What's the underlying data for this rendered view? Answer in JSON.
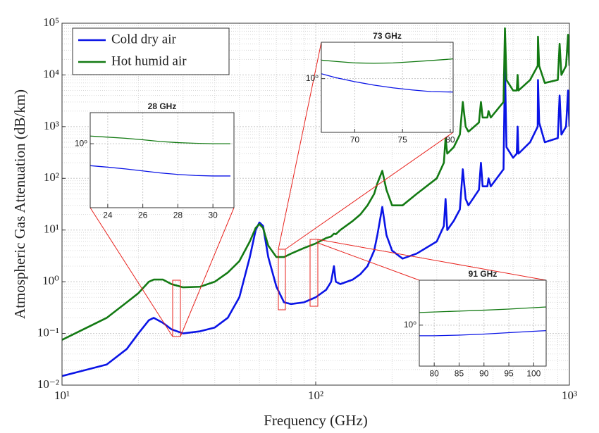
{
  "chart_data": [
    {
      "type": "line",
      "xlabel": "Frequency (GHz)",
      "ylabel": "Atmospheric Gas Attenuation (dB/km)",
      "xlog": true,
      "ylog": true,
      "grid": true,
      "legend": "upper left",
      "xlim": [
        10,
        1000
      ],
      "ylim": [
        0.01,
        100000
      ],
      "xticks": [
        {
          "value": 10,
          "label": "10¹"
        },
        {
          "value": 100,
          "label": "10²"
        },
        {
          "value": 1000,
          "label": "10³"
        }
      ],
      "yticks": [
        {
          "value": 0.01,
          "label": "10⁻²"
        },
        {
          "value": 0.1,
          "label": "10⁻¹"
        },
        {
          "value": 1,
          "label": "10⁰"
        },
        {
          "value": 10,
          "label": "10¹"
        },
        {
          "value": 100,
          "label": "10²"
        },
        {
          "value": 1000,
          "label": "10³"
        },
        {
          "value": 10000,
          "label": "10⁴"
        },
        {
          "value": 100000,
          "label": "10⁵"
        }
      ],
      "x": [
        10,
        15,
        18,
        20,
        22,
        23,
        25,
        27,
        30,
        35,
        40,
        45,
        50,
        55,
        58,
        60,
        62,
        65,
        70,
        75,
        80,
        90,
        100,
        110,
        115,
        118,
        120,
        125,
        140,
        150,
        160,
        170,
        175,
        183,
        190,
        200,
        220,
        250,
        300,
        320,
        325,
        330,
        350,
        370,
        380,
        390,
        400,
        440,
        448,
        455,
        475,
        480,
        490,
        550,
        557,
        565,
        600,
        620,
        625,
        630,
        700,
        750,
        752,
        760,
        800,
        900,
        915,
        930,
        970,
        988,
        1000
      ],
      "series": [
        {
          "name": "Cold dry air",
          "color": "#0a14e6",
          "values": [
            0.015,
            0.025,
            0.05,
            0.1,
            0.18,
            0.2,
            0.16,
            0.12,
            0.1,
            0.11,
            0.13,
            0.2,
            0.5,
            3,
            10,
            14,
            12,
            3,
            0.8,
            0.4,
            0.37,
            0.4,
            0.5,
            0.7,
            1,
            2,
            1,
            0.9,
            1.1,
            1.4,
            2,
            4,
            8,
            28,
            8,
            4,
            2.8,
            3.5,
            6,
            12,
            40,
            10,
            15,
            25,
            150,
            40,
            30,
            60,
            200,
            70,
            70,
            100,
            70,
            150,
            15000,
            400,
            250,
            300,
            1000,
            300,
            500,
            1000,
            8000,
            1200,
            500,
            600,
            4000,
            700,
            1000,
            5000,
            1000
          ]
        },
        {
          "name": "Hot humid air",
          "color": "#137a13",
          "values": [
            0.075,
            0.2,
            0.4,
            0.6,
            1,
            1.1,
            1.1,
            0.9,
            0.78,
            0.8,
            1,
            1.5,
            2.5,
            6,
            11,
            13,
            11,
            5,
            3,
            3,
            3.5,
            4.5,
            5.5,
            7,
            7.5,
            8.5,
            8.3,
            10,
            15,
            20,
            30,
            50,
            80,
            140,
            60,
            30,
            30,
            50,
            100,
            200,
            600,
            300,
            400,
            700,
            3000,
            1000,
            800,
            1200,
            3000,
            1500,
            1500,
            2000,
            1500,
            3000,
            80000,
            8000,
            5000,
            5000,
            10000,
            5000,
            8000,
            15000,
            55000,
            15000,
            7000,
            8000,
            40000,
            10000,
            15000,
            60000,
            15000
          ]
        }
      ]
    },
    {
      "type": "line",
      "title": "28 GHz",
      "xlog": false,
      "ylog": true,
      "grid": true,
      "xlim": [
        23,
        31.2
      ],
      "ylim": [
        0.75,
        1.15
      ],
      "xticks": [
        24,
        26,
        28,
        30
      ],
      "yticks": [
        {
          "value": 1,
          "label": "10⁰"
        }
      ],
      "x": [
        23,
        24,
        25,
        26,
        27,
        28,
        29,
        30,
        31
      ],
      "series": [
        {
          "color": "#137a13",
          "values": [
            1.035,
            1.03,
            1.025,
            1.018,
            1.01,
            1.005,
            1.002,
            1.0,
            1.0
          ]
        },
        {
          "color": "#0a14e6",
          "values": [
            0.906,
            0.9,
            0.893,
            0.885,
            0.877,
            0.871,
            0.867,
            0.865,
            0.865
          ]
        }
      ]
    },
    {
      "type": "line",
      "title": "73 GHz",
      "xlog": false,
      "ylog": true,
      "grid": true,
      "xlim": [
        66.5,
        80.3
      ],
      "ylim": [
        0.764,
        1.2
      ],
      "xticks": [
        70,
        75,
        80
      ],
      "yticks": [
        {
          "value": 1,
          "label": "10⁰"
        }
      ],
      "x": [
        66.5,
        68,
        70,
        72,
        74,
        76,
        78,
        80.3
      ],
      "series": [
        {
          "color": "#137a13",
          "values": [
            1.097,
            1.09,
            1.082,
            1.08,
            1.082,
            1.088,
            1.095,
            1.104
          ]
        },
        {
          "color": "#0a14e6",
          "values": [
            1.025,
            1.005,
            0.985,
            0.968,
            0.955,
            0.945,
            0.937,
            0.935
          ]
        }
      ]
    },
    {
      "type": "line",
      "title": "91 GHz",
      "xlog": false,
      "ylog": true,
      "grid": true,
      "xlim": [
        77,
        102.5
      ],
      "ylim": [
        0.81,
        1.26
      ],
      "xticks": [
        80,
        85,
        90,
        95,
        100
      ],
      "yticks": [
        {
          "value": 1,
          "label": "10⁰"
        }
      ],
      "x": [
        77,
        80,
        85,
        90,
        95,
        100,
        102.5
      ],
      "series": [
        {
          "color": "#137a13",
          "values": [
            1.067,
            1.07,
            1.075,
            1.08,
            1.086,
            1.094,
            1.098
          ]
        },
        {
          "color": "#0a14e6",
          "values": [
            0.947,
            0.947,
            0.95,
            0.955,
            0.962,
            0.969,
            0.972
          ]
        }
      ]
    }
  ]
}
